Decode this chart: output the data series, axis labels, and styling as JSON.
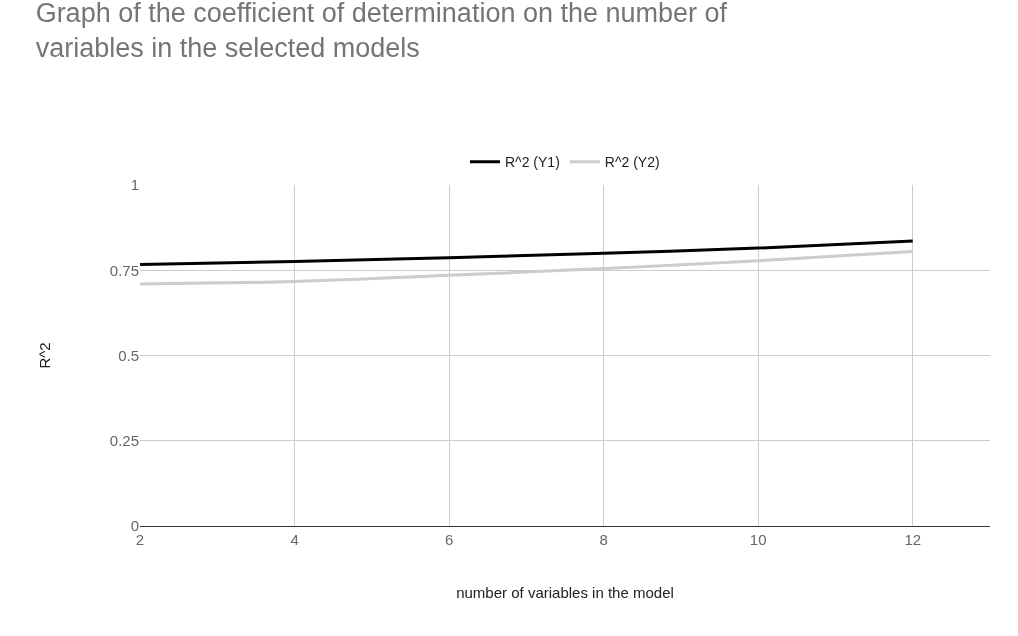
{
  "chart_data": {
    "type": "line",
    "title": "Graph of the coefficient of determination on the number of variables in the selected models",
    "xlabel": "number of variables in the model",
    "ylabel": "R^2",
    "x": [
      2,
      4,
      6,
      8,
      10,
      12
    ],
    "series": [
      {
        "name": "R^2 (Y1)",
        "color": "#000000",
        "values": [
          0.767,
          0.776,
          0.787,
          0.8,
          0.815,
          0.836
        ]
      },
      {
        "name": "R^2 (Y2)",
        "color": "#cccccc",
        "values": [
          0.71,
          0.717,
          0.735,
          0.755,
          0.778,
          0.805
        ]
      }
    ],
    "xlim": [
      2,
      13
    ],
    "xticks": [
      2,
      4,
      6,
      8,
      10,
      12
    ],
    "ylim": [
      0,
      1
    ],
    "yticks": [
      0,
      0.25,
      0.5,
      0.75,
      1
    ],
    "grid": true,
    "legend": "top",
    "marker": "none",
    "line_style": "solid"
  }
}
